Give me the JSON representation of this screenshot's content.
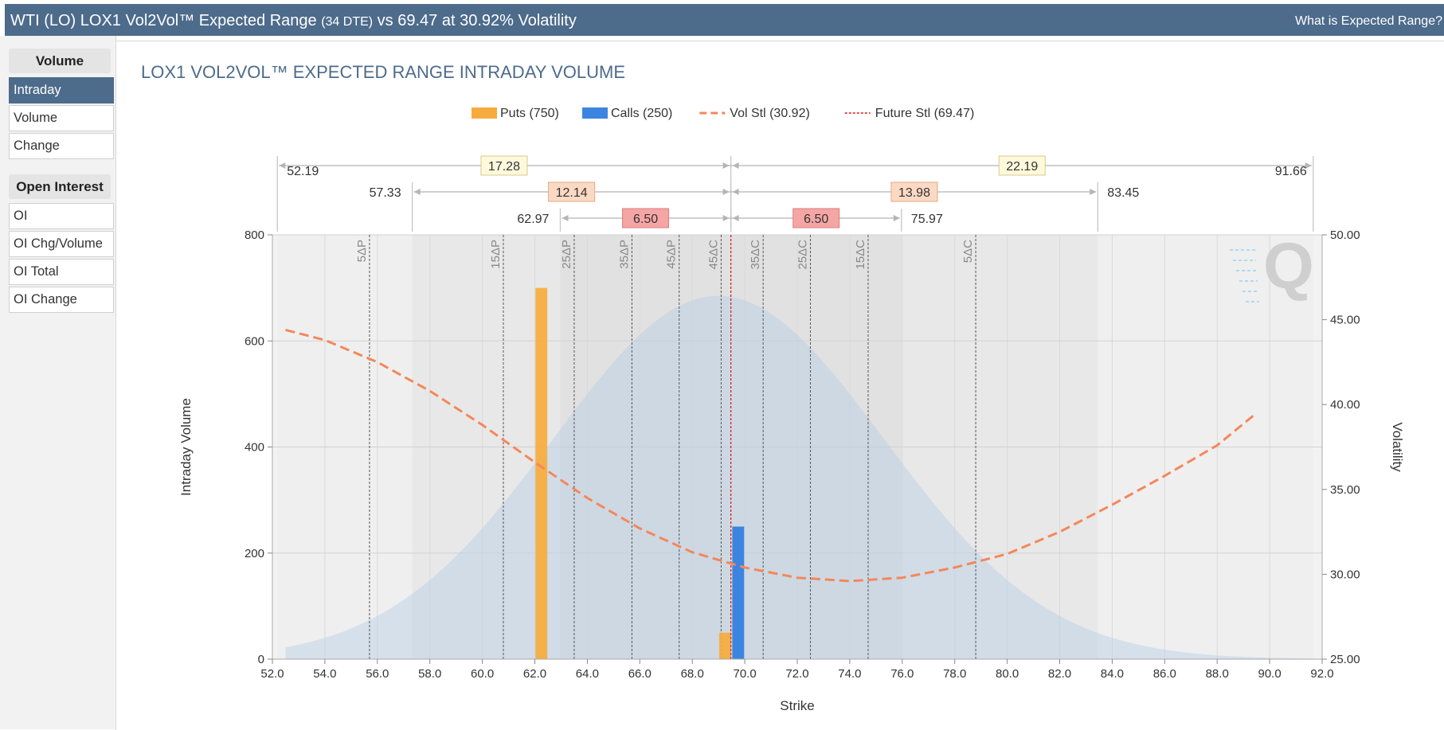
{
  "header": {
    "title_main": "WTI (LO) LOX1 Vol2Vol™ Expected Range",
    "title_dte": "(34 DTE)",
    "title_tail": "vs 69.47 at 30.92% Volatility",
    "help_link": "What is Expected Range?"
  },
  "sidebar": {
    "volume_group": "Volume",
    "volume_items": [
      "Intraday",
      "Volume",
      "Change"
    ],
    "oi_group": "Open Interest",
    "oi_items": [
      "OI",
      "OI Chg/Volume",
      "OI Total",
      "OI Change"
    ],
    "active_item": "Intraday"
  },
  "chart_data": {
    "type": "bar",
    "title": "LOX1 VOL2VOL™ EXPECTED RANGE INTRADAY VOLUME",
    "xlabel": "Strike",
    "ylabel": "Intraday Volume",
    "y2label": "Volatility",
    "xlim": [
      52,
      92
    ],
    "ylim": [
      0,
      800
    ],
    "y2lim": [
      25,
      50
    ],
    "x_ticks": [
      "52.0",
      "54.0",
      "56.0",
      "58.0",
      "60.0",
      "62.0",
      "64.0",
      "66.0",
      "68.0",
      "70.0",
      "72.0",
      "74.0",
      "76.0",
      "78.0",
      "80.0",
      "82.0",
      "84.0",
      "86.0",
      "88.0",
      "90.0",
      "92.0"
    ],
    "y_ticks": [
      "0",
      "200",
      "400",
      "600",
      "800"
    ],
    "y2_ticks": [
      "25.00",
      "30.00",
      "35.00",
      "40.00",
      "45.00",
      "50.00"
    ],
    "legend": [
      {
        "label": "Puts (750)",
        "color": "#f7ab3e",
        "kind": "bar"
      },
      {
        "label": "Calls (250)",
        "color": "#3b85e0",
        "kind": "bar"
      },
      {
        "label": "Vol Stl (30.92)",
        "color": "#f4875a",
        "kind": "dash"
      },
      {
        "label": "Future Stl (69.47)",
        "color": "#d92020",
        "kind": "dot"
      }
    ],
    "puts": [
      {
        "strike": 62.25,
        "value": 700
      },
      {
        "strike": 69.25,
        "value": 50
      }
    ],
    "calls": [
      {
        "strike": 69.75,
        "value": 250
      }
    ],
    "future_settle": 69.47,
    "vol_curve": [
      [
        52.5,
        44.4
      ],
      [
        54,
        43.8
      ],
      [
        56,
        42.5
      ],
      [
        58,
        40.8
      ],
      [
        60,
        38.8
      ],
      [
        62,
        36.6
      ],
      [
        64,
        34.5
      ],
      [
        66,
        32.7
      ],
      [
        68,
        31.3
      ],
      [
        70,
        30.4
      ],
      [
        72,
        29.8
      ],
      [
        74,
        29.6
      ],
      [
        76,
        29.8
      ],
      [
        78,
        30.4
      ],
      [
        80,
        31.2
      ],
      [
        82,
        32.5
      ],
      [
        84,
        34.1
      ],
      [
        86,
        35.8
      ],
      [
        88,
        37.6
      ],
      [
        89.5,
        39.5
      ]
    ],
    "distribution": {
      "mean": 69.0,
      "sd": 6.3,
      "peak": 685
    },
    "delta_lines": [
      {
        "label": "5ΔP",
        "x": 55.7
      },
      {
        "label": "15ΔP",
        "x": 60.8
      },
      {
        "label": "25ΔP",
        "x": 63.5
      },
      {
        "label": "35ΔP",
        "x": 65.7
      },
      {
        "label": "45ΔP",
        "x": 67.5
      },
      {
        "label": "45ΔC",
        "x": 69.1
      },
      {
        "label": "35ΔC",
        "x": 70.7
      },
      {
        "label": "25ΔC",
        "x": 72.5
      },
      {
        "label": "15ΔC",
        "x": 74.7
      },
      {
        "label": "5ΔC",
        "x": 78.8
      }
    ],
    "ranges": [
      {
        "low": "52.19",
        "high": "91.66",
        "left_width": "17.28",
        "right_width": "22.19",
        "lo": 52.19,
        "hi": 91.66,
        "fill": "#fff9dc",
        "stroke": "#d8c98a"
      },
      {
        "low": "57.33",
        "high": "83.45",
        "left_width": "12.14",
        "right_width": "13.98",
        "lo": 57.33,
        "hi": 83.45,
        "fill": "#fcd9c3",
        "stroke": "#e0a987"
      },
      {
        "low": "62.97",
        "high": "75.97",
        "left_width": "6.50",
        "right_width": "6.50",
        "lo": 62.97,
        "hi": 75.97,
        "fill": "#f6a5a5",
        "stroke": "#d97f7f"
      }
    ]
  }
}
